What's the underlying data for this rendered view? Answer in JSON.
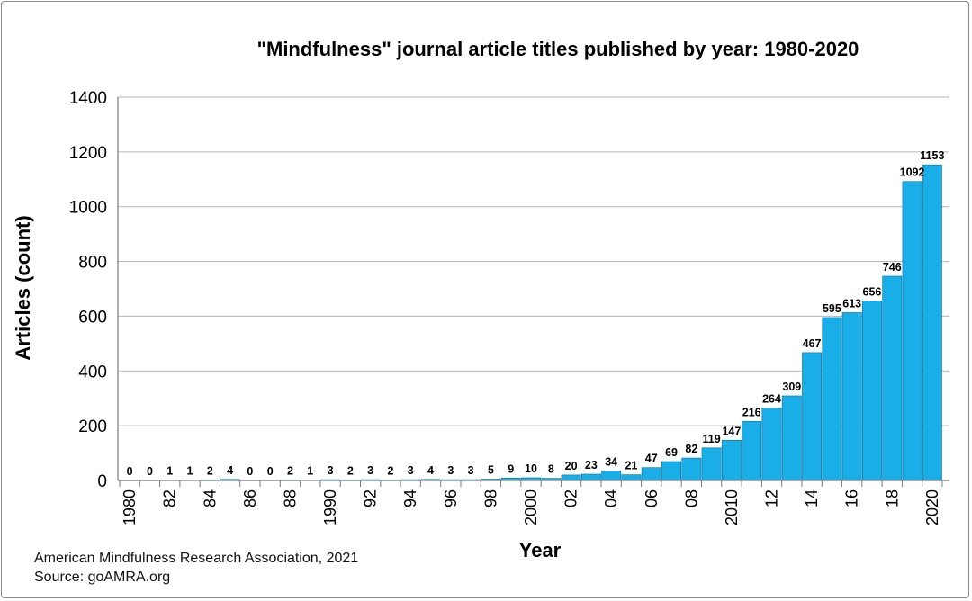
{
  "chart_data": {
    "type": "bar",
    "title": "\"Mindfulness\" journal article titles published by year: 1980-2020",
    "xlabel": "Year",
    "ylabel": "Articles (count)",
    "ylim": [
      0,
      1400
    ],
    "yticks": [
      0,
      200,
      400,
      600,
      800,
      1000,
      1200,
      1400
    ],
    "grid": true,
    "legend": "none",
    "bar_color": "#1aaee8",
    "categories": [
      "1980",
      "1981",
      "1982",
      "1983",
      "1984",
      "1985",
      "1986",
      "1987",
      "1988",
      "1989",
      "1990",
      "1991",
      "1992",
      "1993",
      "1994",
      "1995",
      "1996",
      "1997",
      "1998",
      "1999",
      "2000",
      "2001",
      "2002",
      "2003",
      "2004",
      "2005",
      "2006",
      "2007",
      "2008",
      "2009",
      "2010",
      "2011",
      "2012",
      "2013",
      "2014",
      "2015",
      "2016",
      "2017",
      "2018",
      "2019",
      "2020"
    ],
    "x_tick_labels": [
      "1980",
      "",
      "82",
      "",
      "84",
      "",
      "86",
      "",
      "88",
      "",
      "1990",
      "",
      "92",
      "",
      "94",
      "",
      "96",
      "",
      "98",
      "",
      "2000",
      "",
      "02",
      "",
      "04",
      "",
      "06",
      "",
      "08",
      "",
      "2010",
      "",
      "12",
      "",
      "14",
      "",
      "16",
      "",
      "18",
      "",
      "2020"
    ],
    "values": [
      0,
      0,
      1,
      1,
      2,
      4,
      0,
      0,
      2,
      1,
      3,
      2,
      3,
      2,
      3,
      4,
      3,
      3,
      5,
      9,
      10,
      8,
      20,
      23,
      34,
      21,
      47,
      69,
      82,
      119,
      147,
      216,
      264,
      309,
      467,
      595,
      613,
      656,
      746,
      1092,
      1153
    ]
  },
  "footer": {
    "line1": "American Mindfulness Research Association, 2021",
    "line2": "Source: goAMRA.org"
  }
}
